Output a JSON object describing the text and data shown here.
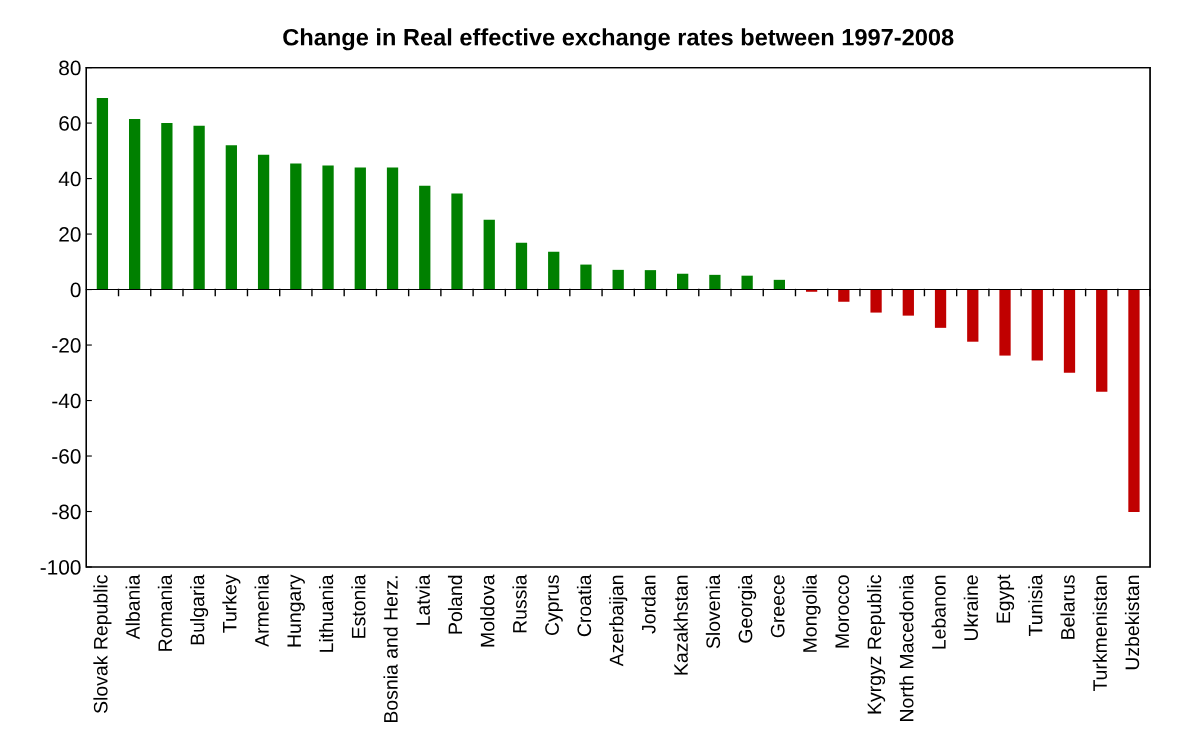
{
  "chart_data": {
    "type": "bar",
    "title": "Change in Real effective exchange rates between 1997-2008",
    "categories": [
      "Slovak Republic",
      "Albania",
      "Romania",
      "Bulgaria",
      "Turkey",
      "Armenia",
      "Hungary",
      "Lithuania",
      "Estonia",
      "Bosnia and Herz.",
      "Latvia",
      "Poland",
      "Moldova",
      "Russia",
      "Cyprus",
      "Croatia",
      "Azerbaijan",
      "Jordan",
      "Kazakhstan",
      "Slovenia",
      "Georgia",
      "Greece",
      "Mongolia",
      "Morocco",
      "Kyrgyz Republic",
      "North Macedonia",
      "Lebanon",
      "Ukraine",
      "Egypt",
      "Tunisia",
      "Belarus",
      "Turkmenistan",
      "Uzbekistan"
    ],
    "values": [
      69,
      61.5,
      60,
      59,
      52,
      48.6,
      45.4,
      44.7,
      44,
      44,
      37.4,
      34.6,
      25.2,
      16.9,
      13.6,
      9,
      7.1,
      7,
      5.7,
      5.3,
      5,
      3.5,
      -0.8,
      -4.4,
      -8.3,
      -9.4,
      -13.8,
      -18.8,
      -23.8,
      -25.6,
      -30,
      -36.8,
      -80.2
    ],
    "colors": [
      "#008000",
      "#008000",
      "#008000",
      "#008000",
      "#008000",
      "#008000",
      "#008000",
      "#008000",
      "#008000",
      "#008000",
      "#008000",
      "#008000",
      "#008000",
      "#008000",
      "#008000",
      "#008000",
      "#008000",
      "#008000",
      "#008000",
      "#008000",
      "#008000",
      "#008000",
      "#c00000",
      "#c00000",
      "#c00000",
      "#c00000",
      "#c00000",
      "#c00000",
      "#c00000",
      "#c00000",
      "#c00000",
      "#c00000",
      "#c00000"
    ],
    "ylim": [
      -100,
      80
    ],
    "yticks": [
      -100,
      -80,
      -60,
      -40,
      -20,
      0,
      20,
      40,
      60,
      80
    ],
    "legend": false
  }
}
